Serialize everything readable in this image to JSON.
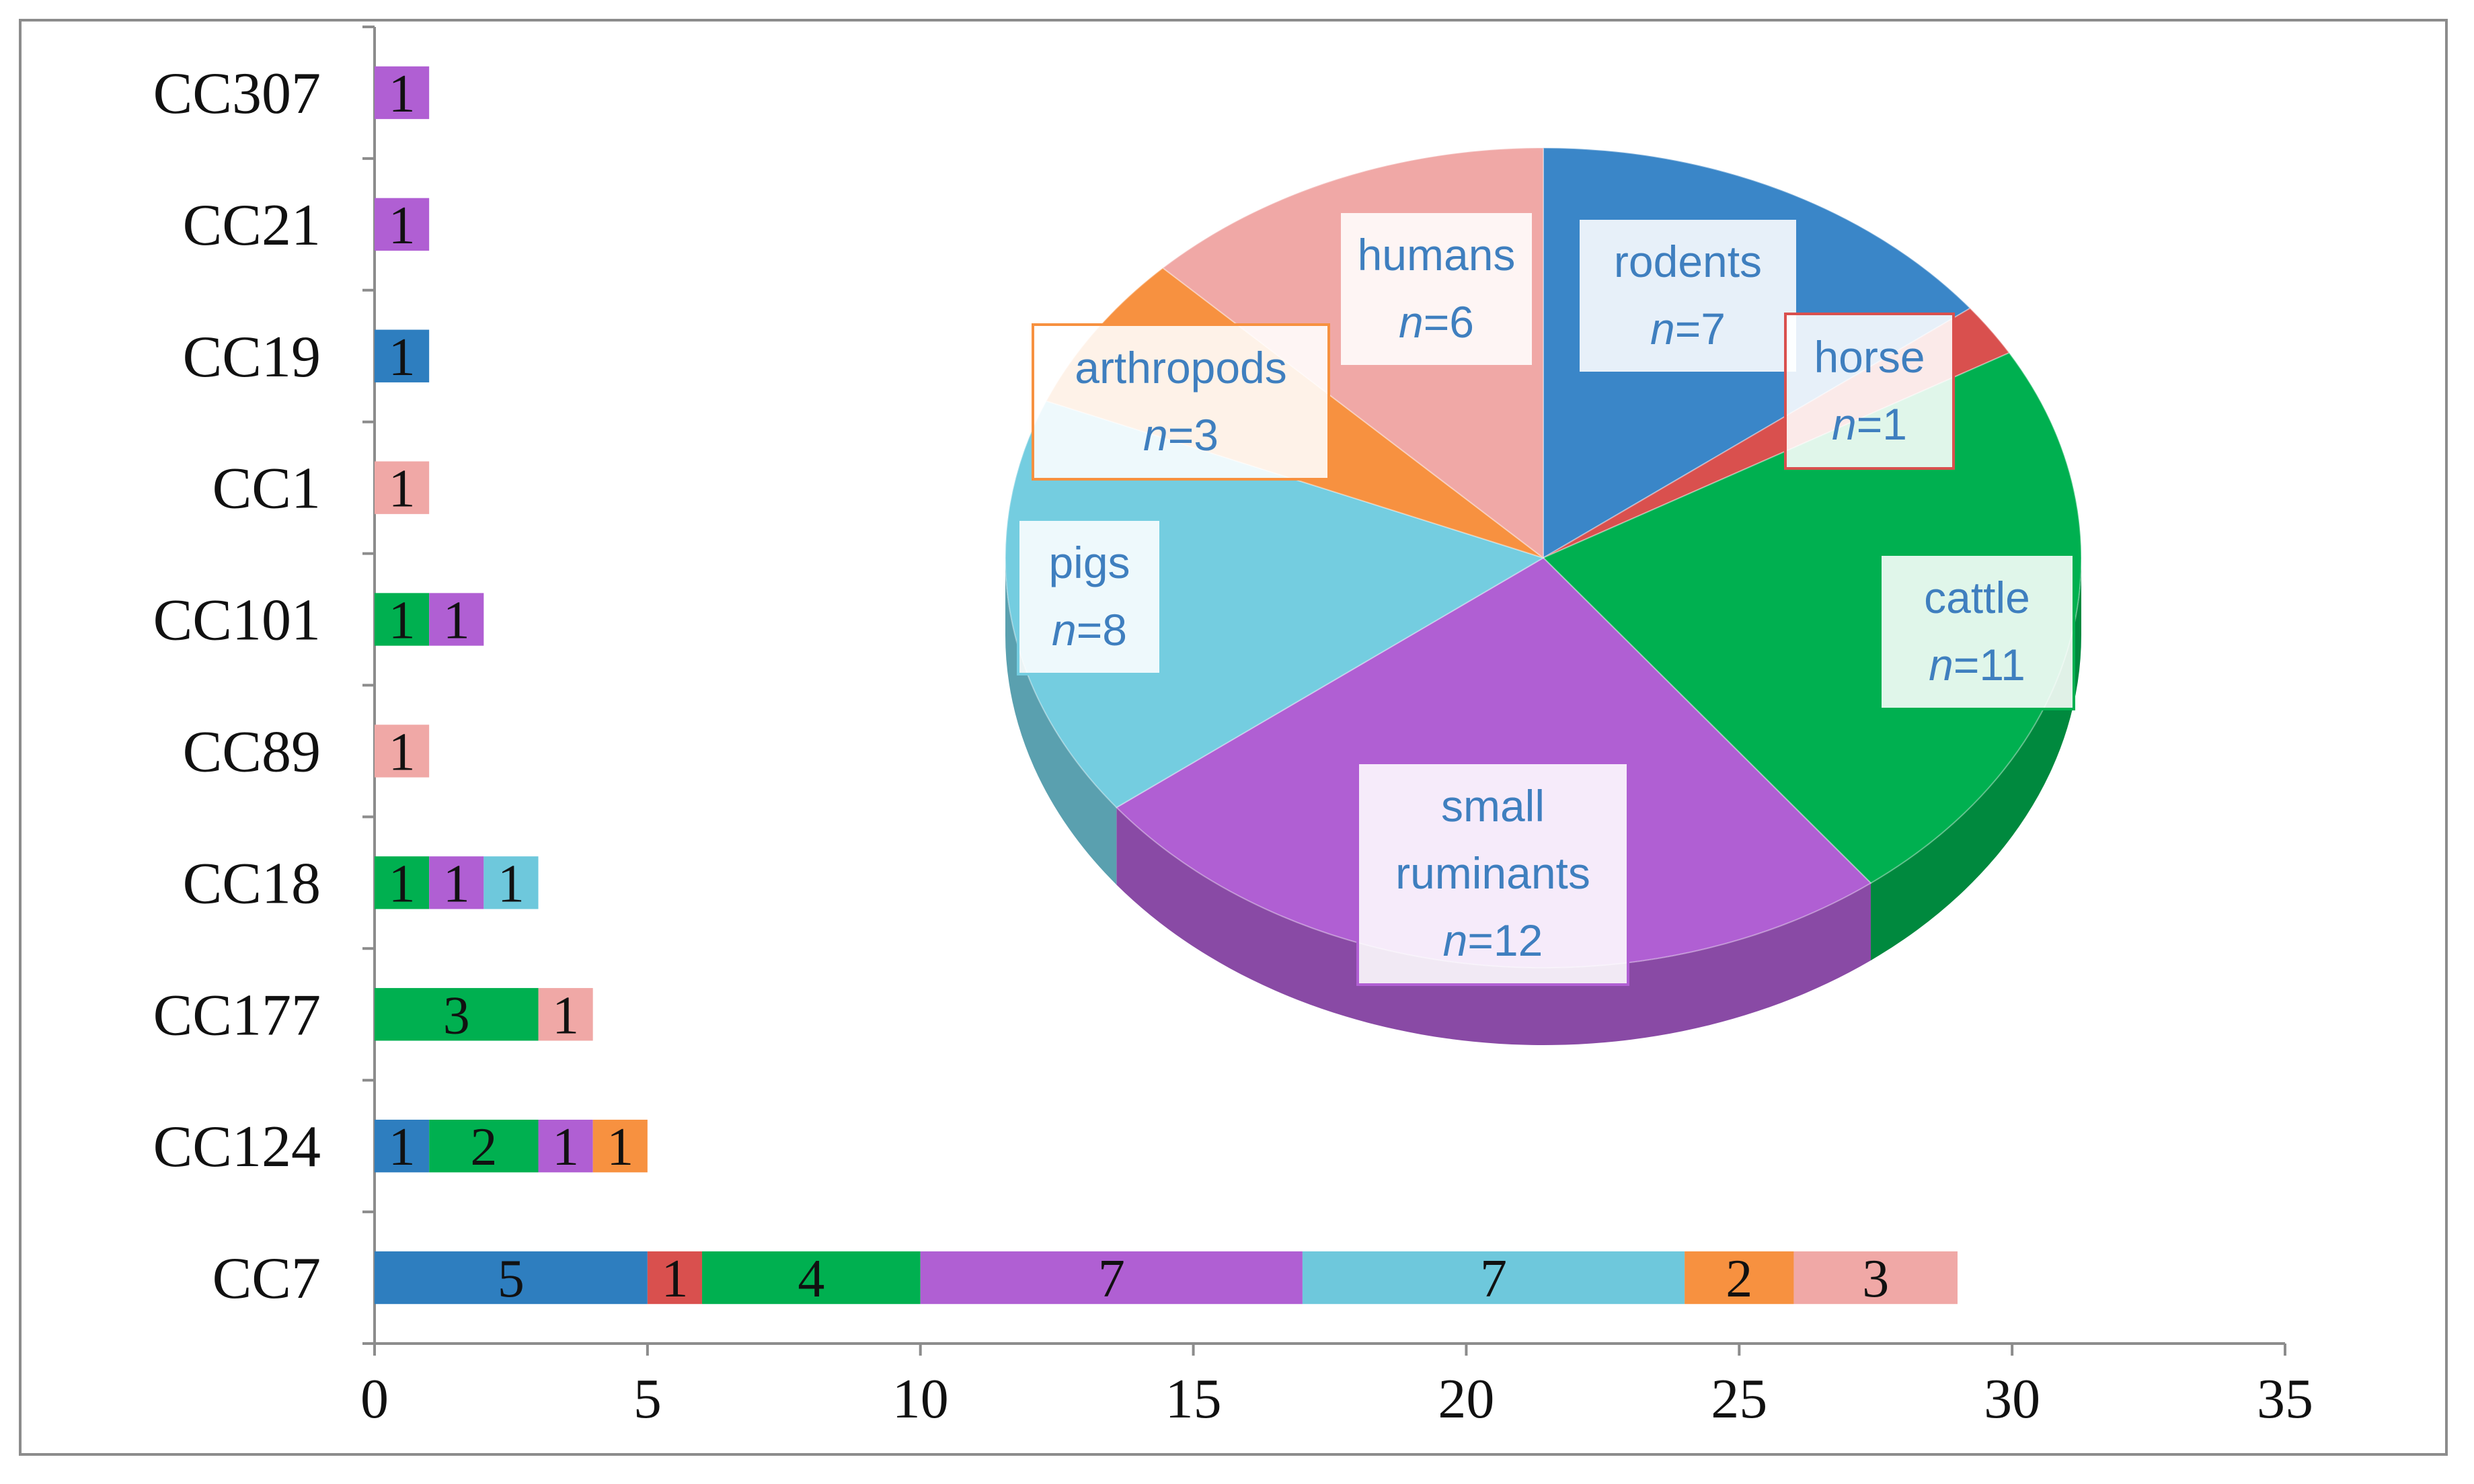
{
  "chart_data": [
    {
      "type": "bar",
      "orientation": "horizontal",
      "stacked": true,
      "categories": [
        "CC307",
        "CC21",
        "CC19",
        "CC1",
        "CC101",
        "CC89",
        "CC18",
        "CC177",
        "CC124",
        "CC7"
      ],
      "series": [
        {
          "color": "#2e7ebf",
          "values": [
            0,
            0,
            1,
            0,
            0,
            0,
            0,
            0,
            1,
            5
          ]
        },
        {
          "color": "#d9504e",
          "values": [
            0,
            0,
            0,
            0,
            0,
            0,
            0,
            0,
            0,
            1
          ]
        },
        {
          "color": "#00b050",
          "values": [
            0,
            0,
            0,
            0,
            1,
            0,
            1,
            3,
            2,
            4
          ]
        },
        {
          "color": "#b05fd3",
          "values": [
            1,
            1,
            0,
            0,
            1,
            0,
            1,
            0,
            1,
            7
          ]
        },
        {
          "color": "#6ec8dc",
          "values": [
            0,
            0,
            0,
            0,
            0,
            0,
            1,
            0,
            0,
            7
          ]
        },
        {
          "color": "#f79140",
          "values": [
            0,
            0,
            0,
            0,
            0,
            0,
            0,
            0,
            1,
            2
          ]
        },
        {
          "color": "#f0a8a6",
          "values": [
            0,
            0,
            0,
            1,
            0,
            1,
            0,
            1,
            0,
            3
          ]
        }
      ],
      "xlim": [
        0,
        35
      ],
      "xticks": [
        "0",
        "5",
        "10",
        "15",
        "20",
        "25",
        "30",
        "35"
      ],
      "grid": false
    },
    {
      "type": "pie",
      "style": "3d",
      "slices": [
        {
          "label": "rodents",
          "n_text": "=7",
          "value": 7,
          "color": "#3a86c8"
        },
        {
          "label": "horse",
          "n_text": "=1",
          "value": 1,
          "color": "#d9504e"
        },
        {
          "label": "cattle",
          "n_text": "=11",
          "value": 11,
          "color": "#00b050"
        },
        {
          "label": "small ruminants",
          "n_text": "=12",
          "value": 12,
          "color": "#b05fd3"
        },
        {
          "label": "pigs",
          "n_text": "=8",
          "value": 8,
          "color": "#74cde0"
        },
        {
          "label": "arthropods",
          "n_text": "=3",
          "value": 3,
          "color": "#f79140"
        },
        {
          "label": "humans",
          "n_text": "=6",
          "value": 6,
          "color": "#f0a8a6"
        }
      ],
      "n_symbol": "n"
    }
  ]
}
